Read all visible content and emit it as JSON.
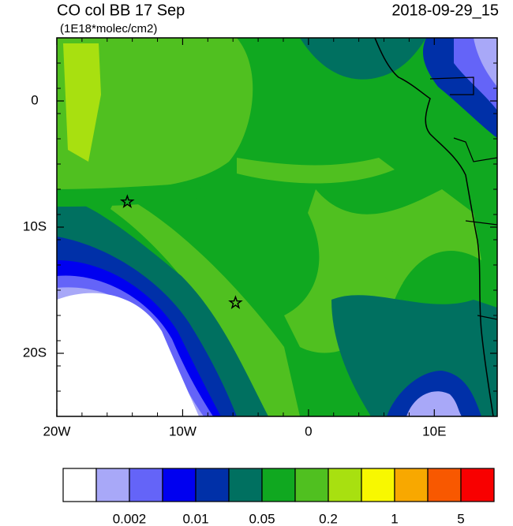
{
  "title": "CO col BB 17 Sep",
  "subtitle": "(1E18*molec/cm2)",
  "date": "2018-09-29_15",
  "map": {
    "lonlim": [
      -20,
      15
    ],
    "latlim": [
      -25,
      5
    ],
    "xticks": [
      {
        "value": -20,
        "label": "20W"
      },
      {
        "value": -10,
        "label": "10W"
      },
      0,
      {
        "value": 10,
        "label": "10E"
      }
    ],
    "yticks": [
      0,
      {
        "value": -10,
        "label": "10S"
      },
      {
        "value": -20,
        "label": "20S"
      }
    ],
    "markers": [
      {
        "lon": -14.4,
        "lat": -8
      },
      {
        "lon": -5.8,
        "lat": -16
      }
    ]
  },
  "colorbar": {
    "colors": [
      "#ffffff",
      "#a8a8f8",
      "#6464f8",
      "#0000f0",
      "#0030a8",
      "#007060",
      "#10a820",
      "#50c020",
      "#a8e010",
      "#f8f800",
      "#f8a800",
      "#f85800",
      "#f80000"
    ],
    "levels": [
      0.002,
      0.01,
      0.05,
      0.2,
      1,
      5
    ]
  }
}
